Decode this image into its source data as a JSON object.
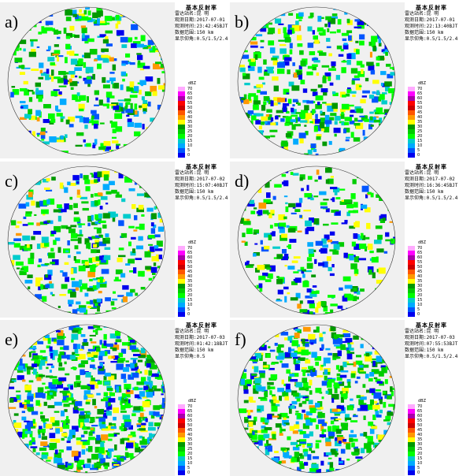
{
  "panels": [
    {
      "tag": "a)",
      "title": "基本反射率",
      "station": "雷达站名:昆 明",
      "date": "观测日期:2017-07-01",
      "time": "观测时间:23:42:45BJT",
      "range": "数据范围:150 km",
      "elev": "显示仰角:0.5/1.5/2.4"
    },
    {
      "tag": "b)",
      "title": "基本反射率",
      "station": "雷达站名:昆 明",
      "date": "观测日期:2017-07-01",
      "time": "观测时间:22:13:40BJT",
      "range": "数据范围:150 km",
      "elev": "显示仰角:0.5/1.5/2.4"
    },
    {
      "tag": "c)",
      "title": "基本反射率",
      "station": "雷达站名:昆 明",
      "date": "观测日期:2017-07-02",
      "time": "观测时间:15:07:40BJT",
      "range": "数据范围:150 km",
      "elev": "显示仰角:0.5/1.5/2.4"
    },
    {
      "tag": "d)",
      "title": "基本反射率",
      "station": "雷达站名:昆 明",
      "date": "观测日期:2017-07-02",
      "time": "观测时间:16:36:45BJT",
      "range": "数据范围:150 km",
      "elev": "显示仰角:0.5/1.5/2.4"
    },
    {
      "tag": "e)",
      "title": "基本反射率",
      "station": "雷达站名:昆 明",
      "date": "观测日期:2017-07-03",
      "time": "观测时间:01:42:18BJT",
      "range": "数据范围:150 km",
      "elev": "显示仰角:0.5"
    },
    {
      "tag": "f)",
      "title": "基本反射率",
      "station": "雷达站名:昆 明",
      "date": "观测日期:2017-07-03",
      "time": "观测时间:07:55:53BJT",
      "range": "数据范围:150 km",
      "elev": "显示仰角:0.5/1.5/2.4"
    }
  ],
  "legend": {
    "unit": "dBZ",
    "levels": [
      {
        "label": "70",
        "color": "#ffaaff"
      },
      {
        "label": "65",
        "color": "#ff00ff"
      },
      {
        "label": "60",
        "color": "#aa00aa"
      },
      {
        "label": "55",
        "color": "#ff0000"
      },
      {
        "label": "50",
        "color": "#cc0000"
      },
      {
        "label": "45",
        "color": "#ff5500"
      },
      {
        "label": "40",
        "color": "#ff9900"
      },
      {
        "label": "35",
        "color": "#ffff00"
      },
      {
        "label": "30",
        "color": "#009900"
      },
      {
        "label": "25",
        "color": "#00cc00"
      },
      {
        "label": "20",
        "color": "#00ff00"
      },
      {
        "label": "15",
        "color": "#00cccc"
      },
      {
        "label": "10",
        "color": "#00aaff"
      },
      {
        "label": "5",
        "color": "#0055ff"
      },
      {
        "label": "0",
        "color": "#0000ee"
      }
    ]
  }
}
